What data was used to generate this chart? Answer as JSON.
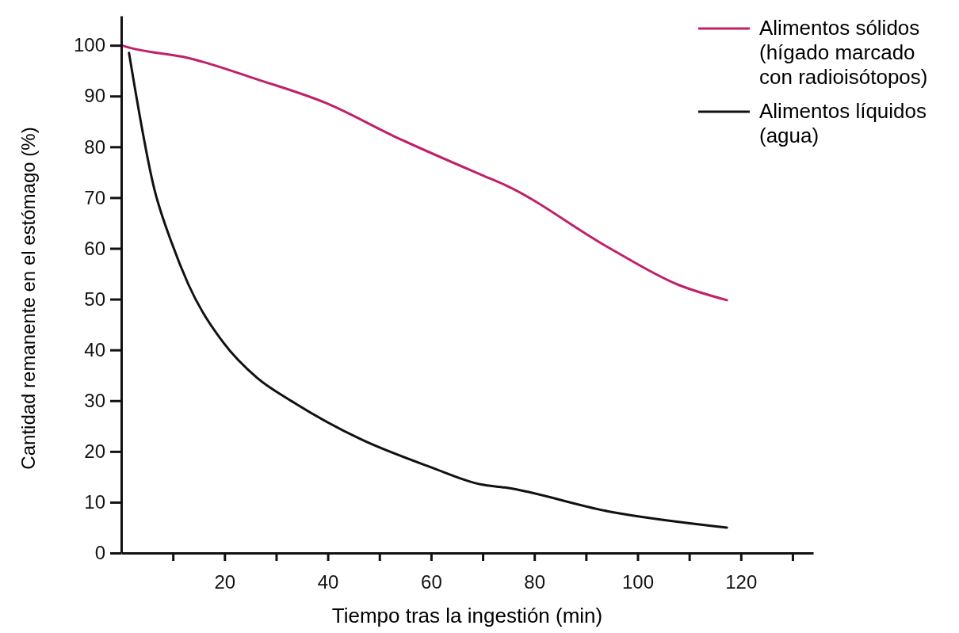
{
  "chart_data": {
    "type": "line",
    "xlabel": "Tiempo tras la ingestión (min)",
    "ylabel": "Cantidad remanente en el estómago (%)",
    "xlim": [
      0,
      134
    ],
    "ylim": [
      0,
      105.8
    ],
    "xticks": [
      {
        "value": 10,
        "label": null
      },
      20,
      {
        "value": 30,
        "label": null
      },
      40,
      {
        "value": 50,
        "label": null
      },
      60,
      {
        "value": 70,
        "label": null
      },
      80,
      {
        "value": 90,
        "label": null
      },
      100,
      {
        "value": 110,
        "label": null
      },
      120,
      {
        "value": 130,
        "label": null
      }
    ],
    "yticks": [
      0,
      10,
      20,
      30,
      40,
      50,
      60,
      70,
      80,
      90,
      100
    ],
    "grid": false,
    "legend": "top right",
    "line_style": "solid",
    "marker": "none",
    "series": [
      {
        "name": "Alimentos sólidos (hígado marcado con radioisótopos)",
        "color": "#c0206a",
        "x": [
          0,
          1.7,
          13,
          26.3,
          39.7,
          53,
          69.7,
          74.3,
          94.3,
          107.7,
          117.3
        ],
        "values": [
          100,
          99.5,
          97.5,
          93.3,
          88.6,
          82,
          74.5,
          72.5,
          60.2,
          52.9,
          49.8
        ]
      },
      {
        "name": "Alimentos líquidos (agua)",
        "color": "#111111",
        "x": [
          1.5,
          6.4,
          9.8,
          13,
          19.8,
          26.3,
          33,
          46.4,
          59.7,
          69.7,
          74.3,
          94.3,
          117.3
        ],
        "values": [
          98.5,
          71.7,
          61,
          52.9,
          41.4,
          34.5,
          29.9,
          22.4,
          17,
          13.5,
          12.9,
          8.2,
          5
        ]
      }
    ]
  }
}
